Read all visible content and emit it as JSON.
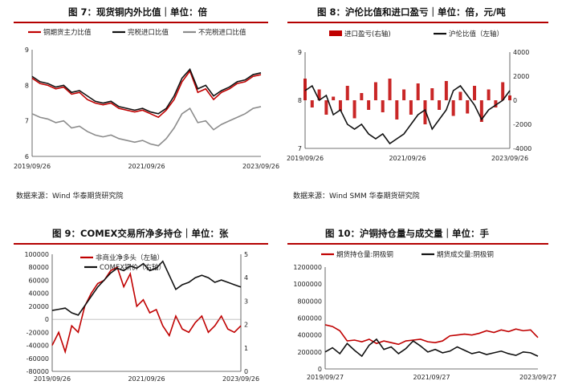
{
  "colors": {
    "red": "#c00000",
    "black": "#111111",
    "gray": "#8c8c8c",
    "title_line": "#b40000"
  },
  "titles": {
    "p7": "图 7：现货铜内外比值｜单位：倍",
    "p8": "图 8：沪伦比值和进口盈亏｜单位：倍，元/吨",
    "p9": "图 9：COMEX交易所净多持仓｜单位：张",
    "p10": "图 10：沪铜持仓量与成交量｜单位：手"
  },
  "sources": {
    "p7": "数据来源：Wind 华泰期货研究院",
    "p8": "数据来源：Wind SMM 华泰期货研究院"
  },
  "chart_data": [
    {
      "id": "p7",
      "type": "line",
      "x_ticks": [
        "2019/09/26",
        "2021/09/26",
        "2023/09/26"
      ],
      "ylim": [
        6,
        9
      ],
      "y_ticks": [
        6,
        7,
        8,
        9
      ],
      "legend": "top",
      "series": [
        {
          "name": "铜期货主力比值",
          "color": "#c00000",
          "values": [
            8.2,
            8.05,
            8.0,
            7.9,
            7.95,
            7.75,
            7.8,
            7.6,
            7.5,
            7.45,
            7.5,
            7.35,
            7.3,
            7.25,
            7.3,
            7.2,
            7.1,
            7.3,
            7.6,
            8.1,
            8.4,
            7.8,
            7.9,
            7.6,
            7.8,
            7.9,
            8.05,
            8.1,
            8.25,
            8.3
          ]
        },
        {
          "name": "完税进口比值",
          "color": "#111111",
          "values": [
            8.25,
            8.1,
            8.05,
            7.95,
            8.0,
            7.8,
            7.85,
            7.7,
            7.55,
            7.5,
            7.55,
            7.4,
            7.35,
            7.3,
            7.35,
            7.25,
            7.2,
            7.35,
            7.7,
            8.2,
            8.45,
            7.9,
            8.0,
            7.7,
            7.85,
            7.95,
            8.1,
            8.15,
            8.3,
            8.35
          ]
        },
        {
          "name": "不完税进口比值",
          "color": "#8c8c8c",
          "values": [
            7.2,
            7.1,
            7.05,
            6.95,
            7.0,
            6.8,
            6.85,
            6.7,
            6.6,
            6.55,
            6.6,
            6.5,
            6.45,
            6.4,
            6.45,
            6.35,
            6.3,
            6.5,
            6.8,
            7.2,
            7.35,
            6.95,
            7.0,
            6.75,
            6.9,
            7.0,
            7.1,
            7.2,
            7.35,
            7.4
          ]
        }
      ]
    },
    {
      "id": "p8",
      "type": "bar+line",
      "x_ticks": [
        "2019/09/26",
        "2021/09/26",
        "2023/09/26"
      ],
      "ylim": [
        7,
        9
      ],
      "y_ticks": [
        7,
        8,
        9
      ],
      "ylim_right": [
        -4000,
        4000
      ],
      "y_ticks_right": [
        -4000,
        -2000,
        0,
        2000,
        4000
      ],
      "legend": "top",
      "series": [
        {
          "name": "进口盈亏(右轴)",
          "color": "#c00000",
          "axis": "right",
          "values": [
            1800,
            -600,
            900,
            -1200,
            300,
            -900,
            1200,
            -1500,
            600,
            -800,
            1500,
            -1000,
            1800,
            -1600,
            900,
            -1200,
            1400,
            -2000,
            1000,
            -800,
            1600,
            -1300,
            700,
            -1100,
            1200,
            -1800,
            900,
            -600,
            1500,
            400
          ]
        },
        {
          "name": "沪伦比值（左轴）",
          "color": "#111111",
          "axis": "left",
          "values": [
            8.2,
            8.3,
            8.0,
            8.1,
            7.7,
            7.8,
            7.5,
            7.4,
            7.5,
            7.3,
            7.2,
            7.3,
            7.1,
            7.2,
            7.3,
            7.5,
            7.7,
            7.8,
            7.4,
            7.6,
            7.8,
            8.2,
            8.3,
            8.1,
            7.9,
            7.6,
            7.8,
            7.9,
            8.0,
            8.2
          ]
        }
      ]
    },
    {
      "id": "p9",
      "type": "line",
      "x_ticks": [
        "2019/09/26",
        "2021/09/26",
        "2023/09/26"
      ],
      "ylim": [
        -80000,
        100000
      ],
      "y_ticks": [
        -80000,
        -60000,
        -40000,
        -20000,
        0,
        20000,
        40000,
        60000,
        80000,
        100000
      ],
      "ylim_right": [
        0,
        5
      ],
      "y_ticks_right": [
        0,
        1,
        2,
        3,
        4,
        5
      ],
      "legend": "top",
      "series": [
        {
          "name": "非商业净多头（左轴）",
          "color": "#c00000",
          "axis": "left",
          "values": [
            -40000,
            -20000,
            -50000,
            -10000,
            -20000,
            20000,
            40000,
            55000,
            60000,
            75000,
            80000,
            50000,
            70000,
            20000,
            30000,
            10000,
            15000,
            -10000,
            -25000,
            5000,
            -15000,
            -20000,
            -5000,
            5000,
            -20000,
            -10000,
            5000,
            -15000,
            -20000,
            -10000
          ]
        },
        {
          "name": "COMEX铜价（右轴）",
          "color": "#111111",
          "axis": "right",
          "values": [
            2.6,
            2.65,
            2.7,
            2.5,
            2.4,
            2.8,
            3.2,
            3.6,
            3.9,
            4.2,
            4.4,
            4.3,
            4.5,
            4.4,
            4.6,
            4.3,
            4.4,
            4.7,
            4.1,
            3.5,
            3.7,
            3.8,
            4.0,
            4.1,
            4.0,
            3.8,
            3.9,
            3.8,
            3.7,
            3.6
          ]
        }
      ]
    },
    {
      "id": "p10",
      "type": "line",
      "x_ticks": [
        "2019/09/27",
        "2021/09/27",
        "2023/09/27"
      ],
      "ylim": [
        0,
        1200000
      ],
      "y_ticks": [
        0,
        200000,
        400000,
        600000,
        800000,
        1000000,
        1200000
      ],
      "legend": "top",
      "series": [
        {
          "name": "期货持仓量:阴极铜",
          "color": "#c00000",
          "values": [
            520000,
            500000,
            450000,
            330000,
            340000,
            320000,
            350000,
            300000,
            330000,
            310000,
            290000,
            330000,
            340000,
            350000,
            320000,
            310000,
            330000,
            390000,
            400000,
            410000,
            400000,
            420000,
            450000,
            430000,
            460000,
            440000,
            470000,
            450000,
            460000,
            370000
          ]
        },
        {
          "name": "期货成交量:阴极铜",
          "color": "#111111",
          "values": [
            200000,
            250000,
            180000,
            300000,
            220000,
            150000,
            280000,
            350000,
            230000,
            260000,
            180000,
            240000,
            330000,
            270000,
            200000,
            230000,
            190000,
            210000,
            260000,
            220000,
            180000,
            200000,
            170000,
            190000,
            210000,
            180000,
            160000,
            200000,
            190000,
            150000
          ]
        }
      ]
    }
  ]
}
